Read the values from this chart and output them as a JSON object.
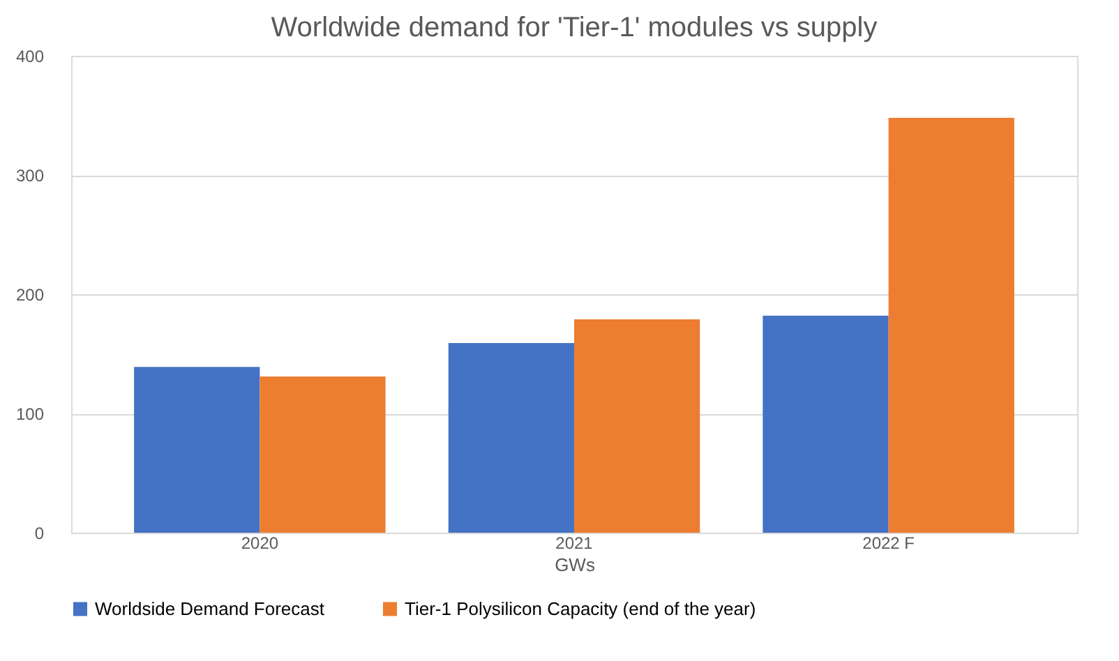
{
  "chart_data": {
    "type": "bar",
    "title": "Worldwide demand for 'Tier-1' modules vs supply",
    "xlabel": "GWs",
    "categories": [
      "2020",
      "2021",
      "2022 F"
    ],
    "series": [
      {
        "name": "Worldside Demand Forecast",
        "color": "#4472c4",
        "values": [
          139,
          159,
          182
        ]
      },
      {
        "name": "Tier-1 Polysilicon Capacity (end of the year)",
        "color": "#ed7d31",
        "values": [
          131,
          179,
          348
        ]
      }
    ],
    "ylim": [
      0,
      400
    ],
    "yticks": [
      0,
      100,
      200,
      300,
      400
    ],
    "grid": "y",
    "legend": "bottom"
  }
}
